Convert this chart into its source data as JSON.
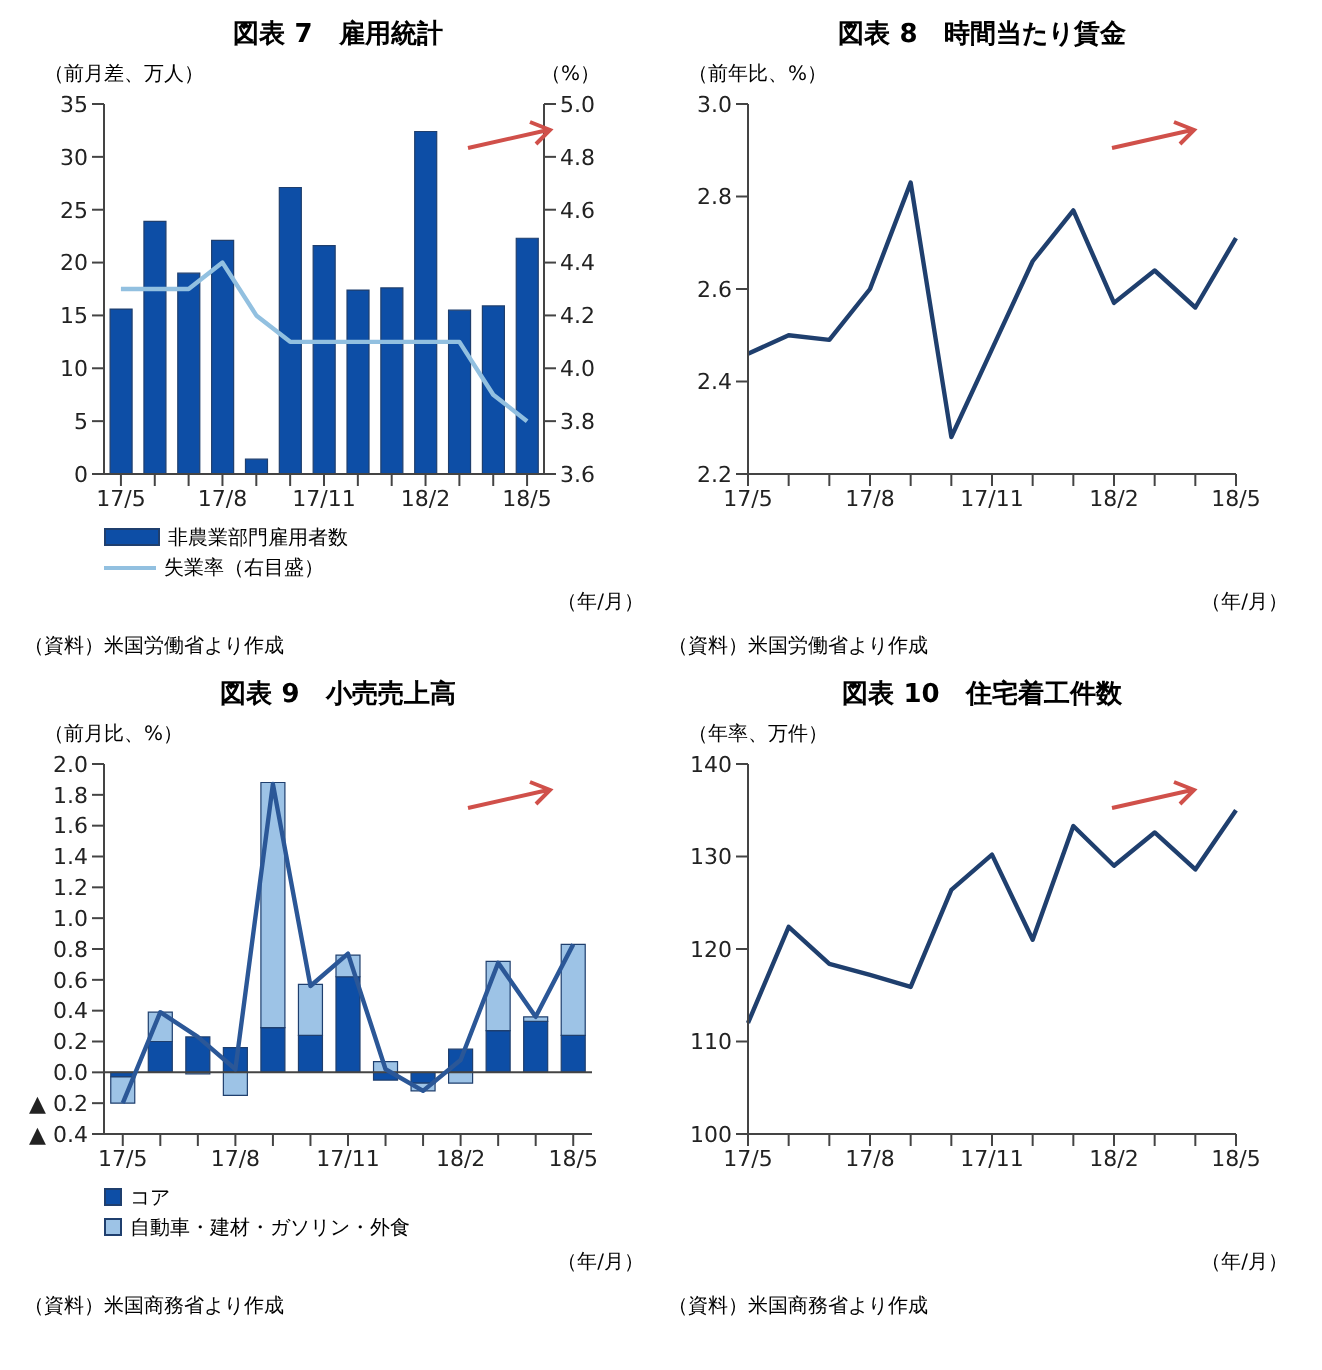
{
  "chart_data": [
    {
      "type": "bar",
      "title": "図表 7　雇用統計",
      "ylabel": "（前月差、万人）",
      "y2label": "（%）",
      "xlabel": "（年/月）",
      "categories": [
        "17/5",
        null,
        null,
        "17/8",
        null,
        null,
        "17/11",
        null,
        null,
        "18/2",
        null,
        null,
        "18/5"
      ],
      "series": [
        {
          "name": "非農業部門雇用者数",
          "color": "#0d4ea6",
          "values": [
            15.6,
            23.9,
            19.0,
            22.1,
            1.4,
            27.1,
            21.6,
            17.4,
            17.6,
            32.4,
            15.5,
            15.9,
            22.3
          ]
        },
        {
          "name": "失業率（右目盛）",
          "type": "line",
          "axis": "y2",
          "color": "#92c0e0",
          "values": [
            4.3,
            4.3,
            4.3,
            4.4,
            4.2,
            4.1,
            4.1,
            4.1,
            4.1,
            4.1,
            4.1,
            3.9,
            3.8
          ]
        }
      ],
      "ylim": [
        0,
        35
      ],
      "yticks": [
        0,
        5,
        10,
        15,
        20,
        25,
        30,
        35
      ],
      "y2lim": [
        3.6,
        5.0
      ],
      "y2ticks": [
        3.6,
        3.8,
        {
          "value": 4,
          "label": "4.0"
        },
        4.2,
        4.4,
        4.6,
        4.8,
        {
          "value": 5,
          "label": "5.0"
        }
      ],
      "legend": "bottom",
      "annotations": [
        "（資料）米国労働省より作成"
      ]
    },
    {
      "type": "line",
      "title": "図表 8　時間当たり賃金",
      "ylabel": "（前年比、%）",
      "xlabel": "（年/月）",
      "categories": [
        "17/5",
        null,
        null,
        "17/8",
        null,
        null,
        "17/11",
        null,
        null,
        "18/2",
        null,
        null,
        "18/5"
      ],
      "series": [
        {
          "color": "#1f3f6e",
          "values": [
            2.46,
            2.5,
            2.49,
            2.6,
            2.83,
            2.28,
            2.47,
            2.66,
            2.77,
            2.57,
            2.64,
            2.56,
            2.71
          ]
        }
      ],
      "ylim": [
        2.2,
        3.0
      ],
      "yticks": [
        2.2,
        2.4,
        2.6,
        2.8,
        {
          "value": 3,
          "label": "3.0"
        }
      ],
      "annotations": [
        "（資料）米国労働省より作成"
      ]
    },
    {
      "type": "bar",
      "title": "図表 9　小売売上高",
      "ylabel": "（前月比、%）",
      "xlabel": "（年/月）",
      "stacked": true,
      "categories": [
        "17/5",
        null,
        null,
        "17/8",
        null,
        null,
        "17/11",
        null,
        null,
        "18/2",
        null,
        null,
        "18/5"
      ],
      "series": [
        {
          "name": "コア",
          "color": "#0d4ea6",
          "values": [
            -0.03,
            0.2,
            0.23,
            0.16,
            0.29,
            0.24,
            0.62,
            -0.05,
            -0.07,
            0.15,
            0.27,
            0.33,
            0.24
          ]
        },
        {
          "name": "自動車・建材・ガソリン・外食",
          "color": "#9dc3e6",
          "values": [
            -0.17,
            0.19,
            -0.01,
            -0.15,
            1.59,
            0.33,
            0.14,
            0.07,
            -0.05,
            -0.07,
            0.45,
            0.03,
            0.59
          ]
        },
        {
          "type": "line",
          "color": "#2b5797",
          "values": [
            -0.2,
            0.39,
            0.23,
            0.02,
            1.87,
            0.56,
            0.77,
            0.02,
            -0.12,
            0.08,
            0.71,
            0.36,
            0.83
          ]
        }
      ],
      "ylim": [
        -0.4,
        2.0
      ],
      "yticks": [
        {
          "value": -0.4,
          "label": "▲ 0.4"
        },
        {
          "value": -0.2,
          "label": "▲ 0.2"
        },
        {
          "value": 0,
          "label": "0.0"
        },
        0.2,
        0.4,
        0.6,
        0.8,
        {
          "value": 1,
          "label": "1.0"
        },
        1.2,
        1.4,
        1.6,
        1.8,
        {
          "value": 2,
          "label": "2.0"
        }
      ],
      "legend": "bottom",
      "annotations": [
        "（資料）米国商務省より作成"
      ]
    },
    {
      "type": "line",
      "title": "図表 10　住宅着工件数",
      "ylabel": "（年率、万件）",
      "xlabel": "（年/月）",
      "categories": [
        "17/5",
        null,
        null,
        "17/8",
        null,
        null,
        "17/11",
        null,
        null,
        "18/2",
        null,
        null,
        "18/5"
      ],
      "series": [
        {
          "color": "#1f3f6e",
          "values": [
            112.0,
            122.4,
            118.4,
            117.2,
            115.9,
            126.4,
            130.2,
            121.0,
            133.3,
            129.0,
            132.6,
            128.6,
            135.0
          ]
        }
      ],
      "ylim": [
        100,
        140
      ],
      "yticks": [
        100,
        110,
        120,
        130,
        140
      ],
      "annotations": [
        "（資料）米国商務省より作成"
      ]
    }
  ]
}
